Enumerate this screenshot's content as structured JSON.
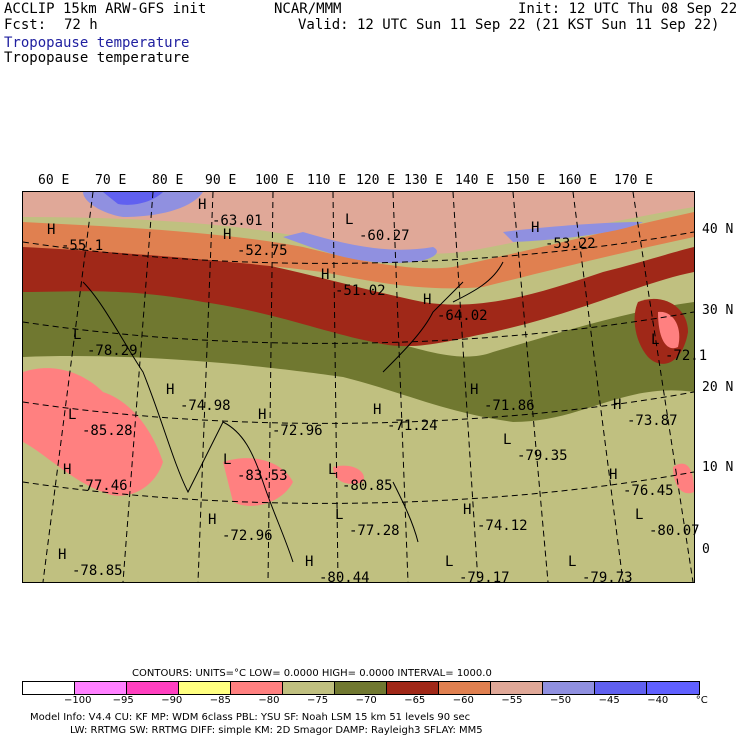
{
  "header": {
    "model": "ACCLIP 15km ARW-GFS init",
    "org": "NCAR/MMM",
    "init": "Init: 12 UTC Thu 08 Sep 22",
    "fcst_label": "Fcst:",
    "fcst_value": "72 h",
    "valid": "Valid: 12 UTC Sun 11 Sep 22 (21 KST Sun 11 Sep 22)",
    "field1": "Tropopause temperature",
    "field2": "Tropopause temperature"
  },
  "longitudes": [
    "60 E",
    "70 E",
    "80 E",
    "90 E",
    "100 E",
    "110 E",
    "120 E",
    "130 E",
    "140 E",
    "150 E",
    "160 E",
    "170 E"
  ],
  "latitudes": [
    "40 N",
    "30 N",
    "20 N",
    "10 N",
    "0"
  ],
  "map_labels": [
    {
      "type": "H",
      "value": "-55.1"
    },
    {
      "type": "H",
      "value": "-63.01"
    },
    {
      "type": "H",
      "value": "-52.75"
    },
    {
      "type": "L",
      "value": "-60.27"
    },
    {
      "type": "H",
      "value": "-51.02"
    },
    {
      "type": "H",
      "value": "-53.22"
    },
    {
      "type": "H",
      "value": "-64.02"
    },
    {
      "type": "L",
      "value": "-78.29"
    },
    {
      "type": "L",
      "value": "-72.1"
    },
    {
      "type": "L",
      "value": "-85.28"
    },
    {
      "type": "H",
      "value": "-74.98"
    },
    {
      "type": "H",
      "value": "-72.96"
    },
    {
      "type": "H",
      "value": "-71.24"
    },
    {
      "type": "H",
      "value": "-71.86"
    },
    {
      "type": "H",
      "value": "-73.87"
    },
    {
      "type": "L",
      "value": "-79.35"
    },
    {
      "type": "H",
      "value": "-77.46"
    },
    {
      "type": "L",
      "value": "-83.53"
    },
    {
      "type": "L",
      "value": "-80.85"
    },
    {
      "type": "H",
      "value": "-76.45"
    },
    {
      "type": "H",
      "value": "-72.96"
    },
    {
      "type": "L",
      "value": "-77.28"
    },
    {
      "type": "H",
      "value": "-74.12"
    },
    {
      "type": "L",
      "value": "-80.07"
    },
    {
      "type": "H",
      "value": "-78.85"
    },
    {
      "type": "H",
      "value": "-80.44"
    },
    {
      "type": "L",
      "value": "-79.17"
    },
    {
      "type": "L",
      "value": "-79.73"
    }
  ],
  "contours_line": "CONTOURS:  UNITS=°C  LOW=  0.0000       HIGH=  0.0000       INTERVAL=   1000.0",
  "colorbar": {
    "colors": [
      "#ffffff",
      "#ff80ff",
      "#ff40c0",
      "#ffff80",
      "#ff8080",
      "#c0c080",
      "#707830",
      "#a02818",
      "#e08050",
      "#e0a898",
      "#9090e0",
      "#6060f0",
      "#6060ff"
    ],
    "ticks": [
      "−100",
      "−95",
      "−90",
      "−85",
      "−80",
      "−75",
      "−70",
      "−65",
      "−60",
      "−55",
      "−50",
      "−45",
      "−40",
      "°C"
    ]
  },
  "info1": "Model Info: V4.4      CU: KF        MP: WDM 6class   PBL: YSU        SF: Noah LSM     15 km    51 levels    90 sec",
  "info2": "LW: RRTMG    SW: RRTMG   DIFF: simple KM: 2D Smagor DAMP: Rayleigh3  SFLAY: MM5"
}
